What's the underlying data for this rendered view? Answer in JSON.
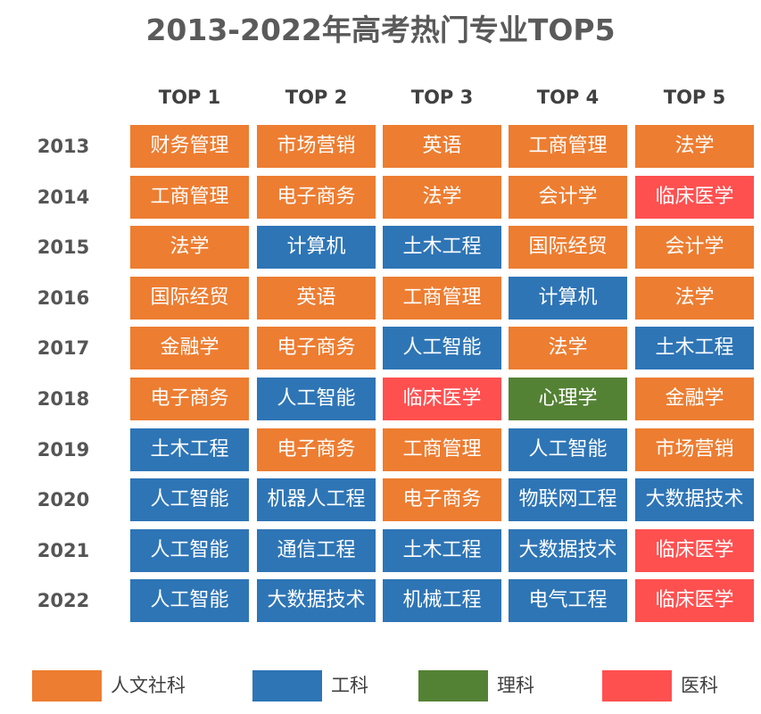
{
  "chart_data": {
    "type": "table",
    "title": "2013-2022年高考热门专业TOP5",
    "columns": [
      "TOP 1",
      "TOP 2",
      "TOP 3",
      "TOP 4",
      "TOP 5"
    ],
    "rows": [
      {
        "year": "2013",
        "cells": [
          {
            "text": "财务管理",
            "cat": "humanities"
          },
          {
            "text": "市场营销",
            "cat": "humanities"
          },
          {
            "text": "英语",
            "cat": "humanities"
          },
          {
            "text": "工商管理",
            "cat": "humanities"
          },
          {
            "text": "法学",
            "cat": "humanities"
          }
        ]
      },
      {
        "year": "2014",
        "cells": [
          {
            "text": "工商管理",
            "cat": "humanities"
          },
          {
            "text": "电子商务",
            "cat": "humanities"
          },
          {
            "text": "法学",
            "cat": "humanities"
          },
          {
            "text": "会计学",
            "cat": "humanities"
          },
          {
            "text": "临床医学",
            "cat": "medicine"
          }
        ]
      },
      {
        "year": "2015",
        "cells": [
          {
            "text": "法学",
            "cat": "humanities"
          },
          {
            "text": "计算机",
            "cat": "engineering"
          },
          {
            "text": "土木工程",
            "cat": "engineering"
          },
          {
            "text": "国际经贸",
            "cat": "humanities"
          },
          {
            "text": "会计学",
            "cat": "humanities"
          }
        ]
      },
      {
        "year": "2016",
        "cells": [
          {
            "text": "国际经贸",
            "cat": "humanities"
          },
          {
            "text": "英语",
            "cat": "humanities"
          },
          {
            "text": "工商管理",
            "cat": "humanities"
          },
          {
            "text": "计算机",
            "cat": "engineering"
          },
          {
            "text": "法学",
            "cat": "humanities"
          }
        ]
      },
      {
        "year": "2017",
        "cells": [
          {
            "text": "金融学",
            "cat": "humanities"
          },
          {
            "text": "电子商务",
            "cat": "humanities"
          },
          {
            "text": "人工智能",
            "cat": "engineering"
          },
          {
            "text": "法学",
            "cat": "humanities"
          },
          {
            "text": "土木工程",
            "cat": "engineering"
          }
        ]
      },
      {
        "year": "2018",
        "cells": [
          {
            "text": "电子商务",
            "cat": "humanities"
          },
          {
            "text": "人工智能",
            "cat": "engineering"
          },
          {
            "text": "临床医学",
            "cat": "medicine"
          },
          {
            "text": "心理学",
            "cat": "science"
          },
          {
            "text": "金融学",
            "cat": "humanities"
          }
        ]
      },
      {
        "year": "2019",
        "cells": [
          {
            "text": "土木工程",
            "cat": "engineering"
          },
          {
            "text": "电子商务",
            "cat": "humanities"
          },
          {
            "text": "工商管理",
            "cat": "humanities"
          },
          {
            "text": "人工智能",
            "cat": "engineering"
          },
          {
            "text": "市场营销",
            "cat": "humanities"
          }
        ]
      },
      {
        "year": "2020",
        "cells": [
          {
            "text": "人工智能",
            "cat": "engineering"
          },
          {
            "text": "机器人工程",
            "cat": "engineering"
          },
          {
            "text": "电子商务",
            "cat": "humanities"
          },
          {
            "text": "物联网工程",
            "cat": "engineering"
          },
          {
            "text": "大数据技术",
            "cat": "engineering"
          }
        ]
      },
      {
        "year": "2021",
        "cells": [
          {
            "text": "人工智能",
            "cat": "engineering"
          },
          {
            "text": "通信工程",
            "cat": "engineering"
          },
          {
            "text": "土木工程",
            "cat": "engineering"
          },
          {
            "text": "大数据技术",
            "cat": "engineering"
          },
          {
            "text": "临床医学",
            "cat": "medicine"
          }
        ]
      },
      {
        "year": "2022",
        "cells": [
          {
            "text": "人工智能",
            "cat": "engineering"
          },
          {
            "text": "大数据技术",
            "cat": "engineering"
          },
          {
            "text": "机械工程",
            "cat": "engineering"
          },
          {
            "text": "电气工程",
            "cat": "engineering"
          },
          {
            "text": "临床医学",
            "cat": "medicine"
          }
        ]
      }
    ],
    "legend": [
      {
        "key": "humanities",
        "label": "人文社科",
        "color": "#ED7D31"
      },
      {
        "key": "engineering",
        "label": "工科",
        "color": "#2E75B6"
      },
      {
        "key": "science",
        "label": "理科",
        "color": "#548235"
      },
      {
        "key": "medicine",
        "label": "医科",
        "color": "#FF5050"
      }
    ]
  }
}
